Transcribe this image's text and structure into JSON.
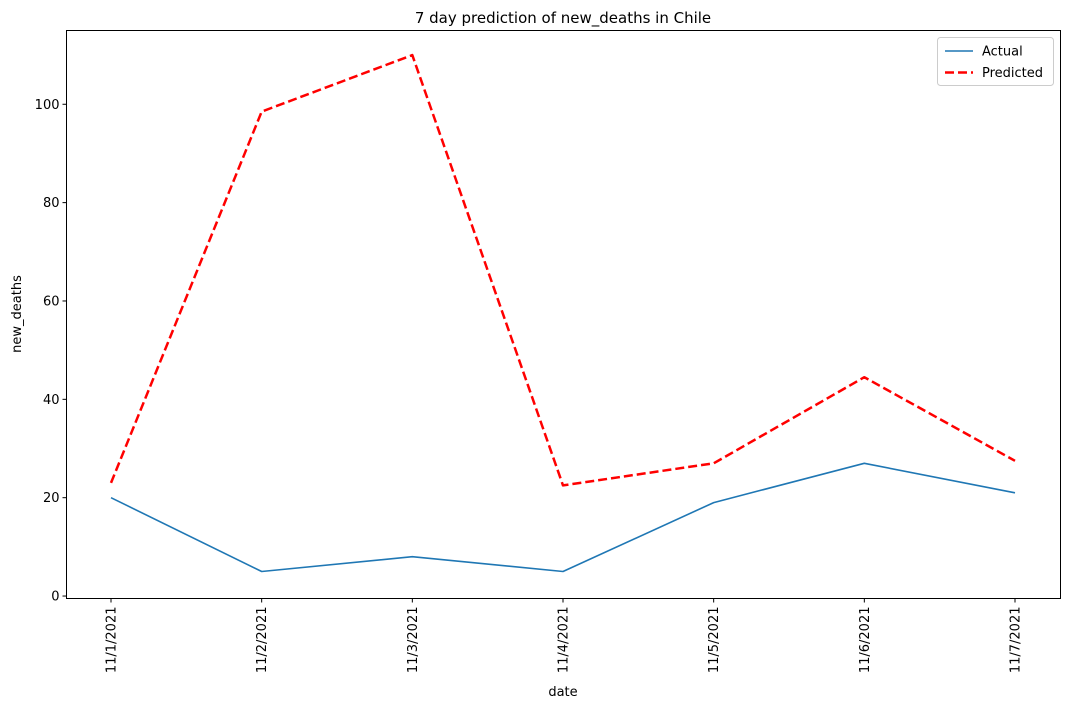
{
  "chart_data": {
    "type": "line",
    "title": "7 day prediction of new_deaths in Chile",
    "xlabel": "date",
    "ylabel": "new_deaths",
    "categories": [
      "11/1/2021",
      "11/2/2021",
      "11/3/2021",
      "11/4/2021",
      "11/5/2021",
      "11/6/2021",
      "11/7/2021"
    ],
    "series": [
      {
        "name": "Actual",
        "values": [
          20,
          5,
          8,
          5,
          19,
          27,
          21
        ],
        "color": "#1f77b4",
        "style": "solid"
      },
      {
        "name": "Predicted",
        "values": [
          23,
          98.5,
          110,
          22.5,
          27,
          44.5,
          27.5
        ],
        "color": "#ff0000",
        "style": "dashed"
      }
    ],
    "ylim": [
      -0.5,
      115
    ],
    "yticks": [
      0,
      20,
      40,
      60,
      80,
      100
    ],
    "grid": false,
    "legend": "top-right"
  }
}
